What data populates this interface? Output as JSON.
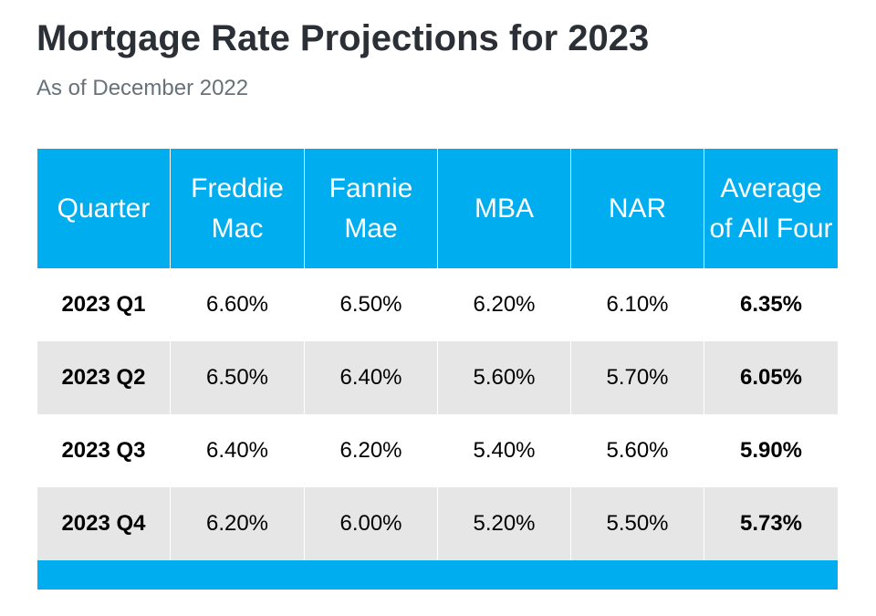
{
  "title": "Mortgage Rate Projections for 2023",
  "subtitle": "As of December 2022",
  "colors": {
    "header_bg": "#00adee",
    "row_shade": "#e6e6e6",
    "title": "#2b2f36",
    "subtitle": "#66727a"
  },
  "chart_data": {
    "type": "table",
    "title": "Mortgage Rate Projections for 2023",
    "subtitle": "As of December 2022",
    "columns": [
      "Quarter",
      "Freddie Mac",
      "Fannie Mae",
      "MBA",
      "NAR",
      "Average of All Four"
    ],
    "rows": [
      {
        "quarter": "2023 Q1",
        "freddie_mac": "6.60%",
        "fannie_mae": "6.50%",
        "mba": "6.20%",
        "nar": "6.10%",
        "average": "6.35%"
      },
      {
        "quarter": "2023 Q2",
        "freddie_mac": "6.50%",
        "fannie_mae": "6.40%",
        "mba": "5.60%",
        "nar": "5.70%",
        "average": "6.05%"
      },
      {
        "quarter": "2023 Q3",
        "freddie_mac": "6.40%",
        "fannie_mae": "6.20%",
        "mba": "5.40%",
        "nar": "5.60%",
        "average": "5.90%"
      },
      {
        "quarter": "2023 Q4",
        "freddie_mac": "6.20%",
        "fannie_mae": "6.00%",
        "mba": "5.20%",
        "nar": "5.50%",
        "average": "5.73%"
      }
    ]
  }
}
